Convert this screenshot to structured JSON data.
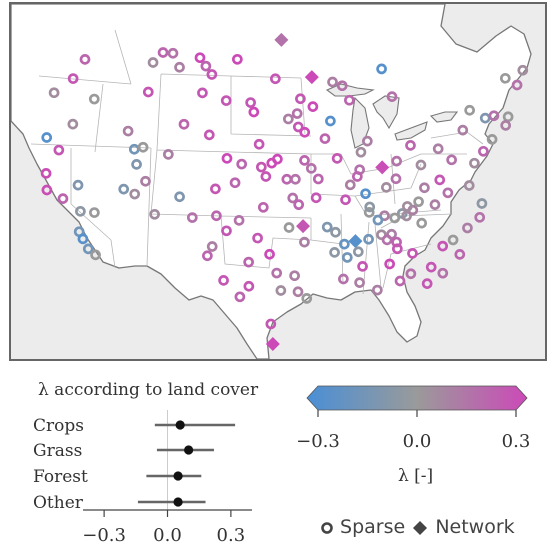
{
  "map": {
    "colors": {
      "land": "#ffffff",
      "water": "#ececec",
      "borders": "#b5b5b5",
      "coast": "#777777"
    },
    "lambda_range": [
      -0.3,
      0.3
    ],
    "sites": [
      {
        "lon": -97.2,
        "lat": 49.5,
        "lambda": 0.15,
        "type": "network"
      },
      {
        "lon": -93.6,
        "lat": 46.7,
        "lambda": 0.3,
        "type": "network"
      },
      {
        "lon": -86.5,
        "lat": 39.8,
        "lambda": 0.28,
        "type": "network"
      },
      {
        "lon": -95.0,
        "lat": 35.6,
        "lambda": 0.25,
        "type": "network"
      },
      {
        "lon": -97.9,
        "lat": 26.8,
        "lambda": 0.3,
        "type": "network"
      },
      {
        "lon": -89.9,
        "lat": 34.4,
        "lambda": -0.25,
        "type": "network"
      },
      {
        "lon": -120.5,
        "lat": 47.1,
        "lambda": 0.2,
        "type": "sparse"
      },
      {
        "lon": -121.3,
        "lat": 45.6,
        "lambda": 0.25,
        "type": "sparse"
      },
      {
        "lon": -123.0,
        "lat": 44.4,
        "lambda": 0.05,
        "type": "sparse"
      },
      {
        "lon": -118.4,
        "lat": 44.3,
        "lambda": 0.0,
        "type": "sparse"
      },
      {
        "lon": -120.1,
        "lat": 42.3,
        "lambda": 0.05,
        "type": "sparse"
      },
      {
        "lon": -122.5,
        "lat": 41.1,
        "lambda": -0.25,
        "type": "sparse"
      },
      {
        "lon": -120.9,
        "lat": 40.3,
        "lambda": 0.25,
        "type": "sparse"
      },
      {
        "lon": -121.6,
        "lat": 38.5,
        "lambda": 0.28,
        "type": "sparse"
      },
      {
        "lon": -121.1,
        "lat": 37.3,
        "lambda": 0.28,
        "type": "sparse"
      },
      {
        "lon": -119.3,
        "lat": 36.8,
        "lambda": 0.2,
        "type": "sparse"
      },
      {
        "lon": -118.1,
        "lat": 37.9,
        "lambda": -0.1,
        "type": "sparse"
      },
      {
        "lon": -117.3,
        "lat": 36.0,
        "lambda": -0.05,
        "type": "sparse"
      },
      {
        "lon": -115.9,
        "lat": 36.0,
        "lambda": 0.0,
        "type": "sparse"
      },
      {
        "lon": -117.0,
        "lat": 34.5,
        "lambda": -0.15,
        "type": "sparse"
      },
      {
        "lon": -116.5,
        "lat": 34.0,
        "lambda": -0.25,
        "type": "sparse"
      },
      {
        "lon": -115.8,
        "lat": 33.3,
        "lambda": -0.15,
        "type": "sparse"
      },
      {
        "lon": -115.0,
        "lat": 32.9,
        "lambda": 0.0,
        "type": "sparse"
      },
      {
        "lon": -113.4,
        "lat": 37.9,
        "lambda": -0.1,
        "type": "sparse"
      },
      {
        "lon": -112.2,
        "lat": 37.6,
        "lambda": 0.05,
        "type": "sparse"
      },
      {
        "lon": -111.3,
        "lat": 38.6,
        "lambda": 0.1,
        "type": "sparse"
      },
      {
        "lon": -112.5,
        "lat": 39.8,
        "lambda": -0.1,
        "type": "sparse"
      },
      {
        "lon": -113.0,
        "lat": 40.9,
        "lambda": -0.15,
        "type": "sparse"
      },
      {
        "lon": -112.1,
        "lat": 41.1,
        "lambda": 0.0,
        "type": "sparse"
      },
      {
        "lon": -114.0,
        "lat": 42.2,
        "lambda": 0.1,
        "type": "sparse"
      },
      {
        "lon": -112.5,
        "lat": 45.2,
        "lambda": 0.25,
        "type": "sparse"
      },
      {
        "lon": -112.5,
        "lat": 47.4,
        "lambda": 0.05,
        "type": "sparse"
      },
      {
        "lon": -111.5,
        "lat": 48.2,
        "lambda": 0.2,
        "type": "sparse"
      },
      {
        "lon": -110.3,
        "lat": 48.2,
        "lambda": 0.15,
        "type": "sparse"
      },
      {
        "lon": -109.3,
        "lat": 47.2,
        "lambda": 0.1,
        "type": "sparse"
      },
      {
        "lon": -107.0,
        "lat": 48.0,
        "lambda": 0.3,
        "type": "sparse"
      },
      {
        "lon": -106.2,
        "lat": 47.4,
        "lambda": 0.2,
        "type": "sparse"
      },
      {
        "lon": -105.4,
        "lat": 46.8,
        "lambda": 0.25,
        "type": "sparse"
      },
      {
        "lon": -106.3,
        "lat": 45.4,
        "lambda": 0.25,
        "type": "sparse"
      },
      {
        "lon": -102.5,
        "lat": 48.0,
        "lambda": 0.3,
        "type": "sparse"
      },
      {
        "lon": -103.5,
        "lat": 44.9,
        "lambda": 0.25,
        "type": "sparse"
      },
      {
        "lon": -100.7,
        "lat": 44.8,
        "lambda": 0.25,
        "type": "sparse"
      },
      {
        "lon": -100.3,
        "lat": 44.1,
        "lambda": 0.3,
        "type": "sparse"
      },
      {
        "lon": -97.9,
        "lat": 46.6,
        "lambda": 0.25,
        "type": "sparse"
      },
      {
        "lon": -96.4,
        "lat": 43.6,
        "lambda": 0.1,
        "type": "sparse"
      },
      {
        "lon": -95.4,
        "lat": 44.0,
        "lambda": 0.15,
        "type": "sparse"
      },
      {
        "lon": -95.3,
        "lat": 43.0,
        "lambda": 0.25,
        "type": "sparse"
      },
      {
        "lon": -94.6,
        "lat": 42.6,
        "lambda": 0.3,
        "type": "sparse"
      },
      {
        "lon": -91.7,
        "lat": 43.4,
        "lambda": -0.25,
        "type": "sparse"
      },
      {
        "lon": -92.4,
        "lat": 42.1,
        "lambda": 0.2,
        "type": "sparse"
      },
      {
        "lon": -91.2,
        "lat": 40.6,
        "lambda": 0.25,
        "type": "sparse"
      },
      {
        "lon": -105.1,
        "lat": 42.3,
        "lambda": 0.25,
        "type": "sparse"
      },
      {
        "lon": -103.0,
        "lat": 40.6,
        "lambda": 0.3,
        "type": "sparse"
      },
      {
        "lon": -104.0,
        "lat": 38.3,
        "lambda": 0.25,
        "type": "sparse"
      },
      {
        "lon": -102.0,
        "lat": 38.8,
        "lambda": 0.2,
        "type": "sparse"
      },
      {
        "lon": -101.4,
        "lat": 40.2,
        "lambda": 0.2,
        "type": "sparse"
      },
      {
        "lon": -99.3,
        "lat": 40.0,
        "lambda": 0.25,
        "type": "sparse"
      },
      {
        "lon": -98.2,
        "lat": 40.3,
        "lambda": 0.3,
        "type": "sparse"
      },
      {
        "lon": -97.6,
        "lat": 40.6,
        "lambda": 0.3,
        "type": "sparse"
      },
      {
        "lon": -98.8,
        "lat": 39.3,
        "lambda": 0.25,
        "type": "sparse"
      },
      {
        "lon": -96.6,
        "lat": 39.1,
        "lambda": 0.2,
        "type": "sparse"
      },
      {
        "lon": -95.7,
        "lat": 39.1,
        "lambda": 0.15,
        "type": "sparse"
      },
      {
        "lon": -94.7,
        "lat": 40.5,
        "lambda": 0.2,
        "type": "sparse"
      },
      {
        "lon": -94.0,
        "lat": 39.9,
        "lambda": 0.15,
        "type": "sparse"
      },
      {
        "lon": -93.3,
        "lat": 39.1,
        "lambda": 0.2,
        "type": "sparse"
      },
      {
        "lon": -96.0,
        "lat": 37.7,
        "lambda": 0.15,
        "type": "sparse"
      },
      {
        "lon": -95.4,
        "lat": 37.2,
        "lambda": 0.2,
        "type": "sparse"
      },
      {
        "lon": -93.6,
        "lat": 37.7,
        "lambda": 0.25,
        "type": "sparse"
      },
      {
        "lon": -99.0,
        "lat": 37.0,
        "lambda": 0.2,
        "type": "sparse"
      },
      {
        "lon": -101.4,
        "lat": 36.0,
        "lambda": 0.15,
        "type": "sparse"
      },
      {
        "lon": -103.7,
        "lat": 36.3,
        "lambda": 0.2,
        "type": "sparse"
      },
      {
        "lon": -102.6,
        "lat": 35.2,
        "lambda": 0.25,
        "type": "sparse"
      },
      {
        "lon": -103.9,
        "lat": 34.0,
        "lambda": 0.1,
        "type": "sparse"
      },
      {
        "lon": -99.5,
        "lat": 34.7,
        "lambda": 0.25,
        "type": "sparse"
      },
      {
        "lon": -100.3,
        "lat": 32.9,
        "lambda": 0.2,
        "type": "sparse"
      },
      {
        "lon": -98.3,
        "lat": 33.5,
        "lambda": 0.3,
        "type": "sparse"
      },
      {
        "lon": -97.6,
        "lat": 32.1,
        "lambda": 0.15,
        "type": "sparse"
      },
      {
        "lon": -95.9,
        "lat": 31.9,
        "lambda": 0.1,
        "type": "sparse"
      },
      {
        "lon": -100.2,
        "lat": 31.1,
        "lambda": 0.25,
        "type": "sparse"
      },
      {
        "lon": -102.6,
        "lat": 31.5,
        "lambda": 0.25,
        "type": "sparse"
      },
      {
        "lon": -101.0,
        "lat": 30.3,
        "lambda": 0.2,
        "type": "sparse"
      },
      {
        "lon": -98.1,
        "lat": 28.3,
        "lambda": 0.25,
        "type": "sparse"
      },
      {
        "lon": -97.2,
        "lat": 30.8,
        "lambda": 0.05,
        "type": "sparse"
      },
      {
        "lon": -95.6,
        "lat": 30.7,
        "lambda": 0.1,
        "type": "sparse"
      },
      {
        "lon": -94.8,
        "lat": 30.2,
        "lambda": 0.0,
        "type": "sparse"
      },
      {
        "lon": -96.4,
        "lat": 35.5,
        "lambda": 0.0,
        "type": "sparse"
      },
      {
        "lon": -94.9,
        "lat": 34.4,
        "lambda": 0.1,
        "type": "sparse"
      },
      {
        "lon": -92.6,
        "lat": 35.5,
        "lambda": -0.1,
        "type": "sparse"
      },
      {
        "lon": -91.8,
        "lat": 35.1,
        "lambda": -0.05,
        "type": "sparse"
      },
      {
        "lon": -91.0,
        "lat": 34.2,
        "lambda": -0.2,
        "type": "sparse"
      },
      {
        "lon": -92.0,
        "lat": 33.6,
        "lambda": -0.05,
        "type": "sparse"
      },
      {
        "lon": -90.8,
        "lat": 33.2,
        "lambda": -0.15,
        "type": "sparse"
      },
      {
        "lon": -89.7,
        "lat": 33.6,
        "lambda": -0.05,
        "type": "sparse"
      },
      {
        "lon": -88.6,
        "lat": 34.5,
        "lambda": -0.15,
        "type": "sparse"
      },
      {
        "lon": -89.4,
        "lat": 32.5,
        "lambda": 0.25,
        "type": "sparse"
      },
      {
        "lon": -89.8,
        "lat": 31.3,
        "lambda": 0.1,
        "type": "sparse"
      },
      {
        "lon": -91.3,
        "lat": 31.6,
        "lambda": 0.15,
        "type": "sparse"
      },
      {
        "lon": -87.3,
        "lat": 34.8,
        "lambda": 0.05,
        "type": "sparse"
      },
      {
        "lon": -86.3,
        "lat": 34.8,
        "lambda": 0.1,
        "type": "sparse"
      },
      {
        "lon": -86.8,
        "lat": 34.4,
        "lambda": 0.15,
        "type": "sparse"
      },
      {
        "lon": -85.9,
        "lat": 34.2,
        "lambda": 0.2,
        "type": "sparse"
      },
      {
        "lon": -85.9,
        "lat": 33.7,
        "lambda": 0.25,
        "type": "sparse"
      },
      {
        "lon": -86.8,
        "lat": 32.6,
        "lambda": 0.3,
        "type": "sparse"
      },
      {
        "lon": -84.5,
        "lat": 33.3,
        "lambda": 0.25,
        "type": "sparse"
      },
      {
        "lon": -84.9,
        "lat": 31.8,
        "lambda": 0.15,
        "type": "sparse"
      },
      {
        "lon": -86.0,
        "lat": 31.3,
        "lambda": 0.2,
        "type": "sparse"
      },
      {
        "lon": -88.2,
        "lat": 30.7,
        "lambda": 0.1,
        "type": "sparse"
      },
      {
        "lon": -83.2,
        "lat": 35.5,
        "lambda": 0.0,
        "type": "sparse"
      },
      {
        "lon": -81.5,
        "lat": 33.7,
        "lambda": 0.25,
        "type": "sparse"
      },
      {
        "lon": -86.8,
        "lat": 36.2,
        "lambda": 0.1,
        "type": "sparse"
      },
      {
        "lon": -88.3,
        "lat": 36.5,
        "lambda": 0.0,
        "type": "sparse"
      },
      {
        "lon": -88.2,
        "lat": 36.9,
        "lambda": -0.05,
        "type": "sparse"
      },
      {
        "lon": -87.5,
        "lat": 35.9,
        "lambda": -0.15,
        "type": "sparse"
      },
      {
        "lon": -85.0,
        "lat": 36.3,
        "lambda": -0.05,
        "type": "sparse"
      },
      {
        "lon": -85.8,
        "lat": 36.0,
        "lambda": 0.0,
        "type": "sparse"
      },
      {
        "lon": -84.6,
        "lat": 36.1,
        "lambda": 0.05,
        "type": "sparse"
      },
      {
        "lon": -83.9,
        "lat": 36.5,
        "lambda": 0.1,
        "type": "sparse"
      },
      {
        "lon": -84.4,
        "lat": 36.8,
        "lambda": 0.05,
        "type": "sparse"
      },
      {
        "lon": -83.2,
        "lat": 37.1,
        "lambda": 0.0,
        "type": "sparse"
      },
      {
        "lon": -81.6,
        "lat": 36.8,
        "lambda": 0.1,
        "type": "sparse"
      },
      {
        "lon": -88.5,
        "lat": 37.9,
        "lambda": -0.25,
        "type": "sparse"
      },
      {
        "lon": -86.3,
        "lat": 38.3,
        "lambda": 0.05,
        "type": "sparse"
      },
      {
        "lon": -85.2,
        "lat": 38.9,
        "lambda": 0.15,
        "type": "sparse"
      },
      {
        "lon": -82.4,
        "lat": 38.1,
        "lambda": 0.1,
        "type": "sparse"
      },
      {
        "lon": -80.1,
        "lat": 37.6,
        "lambda": 0.15,
        "type": "sparse"
      },
      {
        "lon": -77.8,
        "lat": 38.0,
        "lambda": 0.05,
        "type": "sparse"
      },
      {
        "lon": -76.9,
        "lat": 36.6,
        "lambda": -0.05,
        "type": "sparse"
      },
      {
        "lon": -77.4,
        "lat": 35.6,
        "lambda": 0.15,
        "type": "sparse"
      },
      {
        "lon": -78.8,
        "lat": 34.9,
        "lambda": 0.1,
        "type": "sparse"
      },
      {
        "lon": -80.4,
        "lat": 34.1,
        "lambda": 0.0,
        "type": "sparse"
      },
      {
        "lon": -80.0,
        "lat": 33.0,
        "lambda": 0.2,
        "type": "sparse"
      },
      {
        "lon": -81.9,
        "lat": 31.7,
        "lambda": 0.15,
        "type": "sparse"
      },
      {
        "lon": -82.9,
        "lat": 32.2,
        "lambda": 0.25,
        "type": "sparse"
      },
      {
        "lon": -83.5,
        "lat": 31.0,
        "lambda": 0.25,
        "type": "sparse"
      },
      {
        "lon": -87.8,
        "lat": 41.8,
        "lambda": 0.1,
        "type": "sparse"
      },
      {
        "lon": -88.6,
        "lat": 41.0,
        "lambda": 0.05,
        "type": "sparse"
      },
      {
        "lon": -88.9,
        "lat": 39.7,
        "lambda": 0.15,
        "type": "sparse"
      },
      {
        "lon": -89.2,
        "lat": 39.2,
        "lambda": 0.2,
        "type": "sparse"
      },
      {
        "lon": -90.0,
        "lat": 38.6,
        "lambda": 0.1,
        "type": "sparse"
      },
      {
        "lon": -90.6,
        "lat": 37.5,
        "lambda": 0.25,
        "type": "sparse"
      },
      {
        "lon": -84.9,
        "lat": 40.2,
        "lambda": 0.15,
        "type": "sparse"
      },
      {
        "lon": -83.2,
        "lat": 41.3,
        "lambda": 0.2,
        "type": "sparse"
      },
      {
        "lon": -82.4,
        "lat": 39.8,
        "lambda": 0.05,
        "type": "sparse"
      },
      {
        "lon": -80.3,
        "lat": 40.9,
        "lambda": 0.1,
        "type": "sparse"
      },
      {
        "lon": -79.1,
        "lat": 40.0,
        "lambda": 0.15,
        "type": "sparse"
      },
      {
        "lon": -80.7,
        "lat": 38.6,
        "lambda": 0.25,
        "type": "sparse"
      },
      {
        "lon": -76.8,
        "lat": 39.6,
        "lambda": 0.05,
        "type": "sparse"
      },
      {
        "lon": -75.6,
        "lat": 40.4,
        "lambda": 0.2,
        "type": "sparse"
      },
      {
        "lon": -77.3,
        "lat": 42.1,
        "lambda": 0.1,
        "type": "sparse"
      },
      {
        "lon": -76.1,
        "lat": 43.5,
        "lambda": 0.0,
        "type": "sparse"
      },
      {
        "lon": -74.6,
        "lat": 42.8,
        "lambda": -0.1,
        "type": "sparse"
      },
      {
        "lon": -73.6,
        "lat": 42.9,
        "lambda": 0.15,
        "type": "sparse"
      },
      {
        "lon": -72.1,
        "lat": 42.7,
        "lambda": 0.0,
        "type": "sparse"
      },
      {
        "lon": -72.6,
        "lat": 42.1,
        "lambda": 0.1,
        "type": "sparse"
      },
      {
        "lon": -74.4,
        "lat": 41.2,
        "lambda": 0.0,
        "type": "sparse"
      },
      {
        "lon": -71.3,
        "lat": 45.5,
        "lambda": 0.0,
        "type": "sparse"
      },
      {
        "lon": -70.2,
        "lat": 44.9,
        "lambda": 0.15,
        "type": "sparse"
      },
      {
        "lon": -69.1,
        "lat": 45.9,
        "lambda": 0.05,
        "type": "sparse"
      },
      {
        "lon": -85.3,
        "lat": 47.1,
        "lambda": -0.25,
        "type": "sparse"
      },
      {
        "lon": -84.5,
        "lat": 45.0,
        "lambda": 0.15,
        "type": "sparse"
      },
      {
        "lon": -89.4,
        "lat": 44.9,
        "lambda": 0.2,
        "type": "sparse"
      },
      {
        "lon": -91.2,
        "lat": 46.3,
        "lambda": 0.1,
        "type": "sparse"
      },
      {
        "lon": -90.1,
        "lat": 46.0,
        "lambda": 0.15,
        "type": "sparse"
      },
      {
        "lon": -93.6,
        "lat": 44.5,
        "lambda": 0.3,
        "type": "sparse"
      },
      {
        "lon": -95.0,
        "lat": 45.1,
        "lambda": 0.25,
        "type": "sparse"
      },
      {
        "lon": -99.6,
        "lat": 41.7,
        "lambda": 0.25,
        "type": "sparse"
      },
      {
        "lon": -108.0,
        "lat": 43.0,
        "lambda": 0.2,
        "type": "sparse"
      },
      {
        "lon": -109.3,
        "lat": 40.7,
        "lambda": 0.1,
        "type": "sparse"
      },
      {
        "lon": -109.9,
        "lat": 36.2,
        "lambda": 0.05,
        "type": "sparse"
      },
      {
        "lon": -107.6,
        "lat": 37.6,
        "lambda": -0.1,
        "type": "sparse"
      },
      {
        "lon": -106.1,
        "lat": 36.1,
        "lambda": 0.15,
        "type": "sparse"
      },
      {
        "lon": -104.3,
        "lat": 33.3,
        "lambda": 0.2,
        "type": "sparse"
      }
    ]
  },
  "landcover": {
    "title": "λ according to land cover",
    "categories": [
      "Crops",
      "Grass",
      "Forest",
      "Other"
    ],
    "means": [
      0.06,
      0.1,
      0.05,
      0.05
    ],
    "lower": [
      -0.06,
      -0.05,
      -0.1,
      -0.14
    ],
    "upper": [
      0.32,
      0.22,
      0.16,
      0.18
    ],
    "xlim": [
      -0.4,
      0.4
    ],
    "ticks": [
      -0.3,
      0.0,
      0.3
    ],
    "tick_labels": [
      "−0.3",
      "0.0",
      "0.3"
    ]
  },
  "colorbar": {
    "ticks": [
      -0.3,
      0.0,
      0.3
    ],
    "tick_labels": [
      "−0.3",
      "0.0",
      "0.3"
    ],
    "label": "λ [-]",
    "stops": [
      "#4a8fd6",
      "#9a9a9a",
      "#cc4ab8"
    ]
  },
  "legend": {
    "sparse": "Sparse",
    "network": "Network"
  }
}
